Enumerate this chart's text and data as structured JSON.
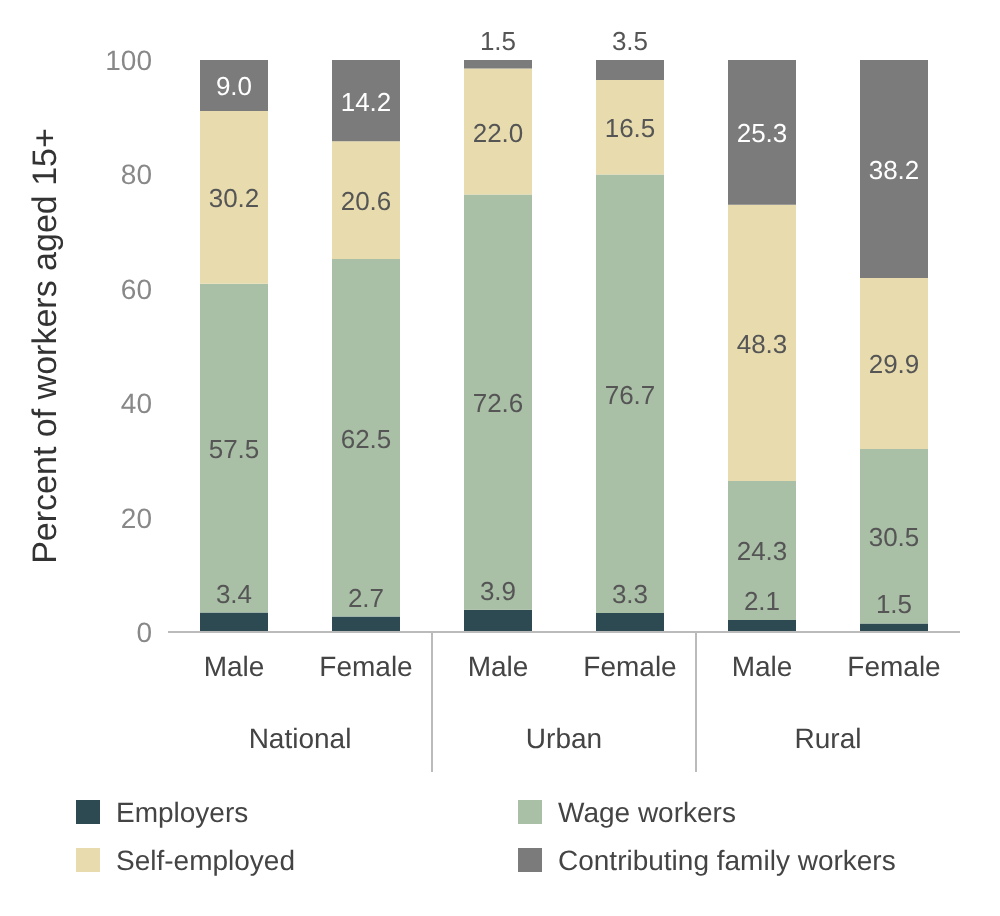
{
  "chart_data": {
    "type": "bar",
    "stacked": true,
    "ylabel": "Percent of workers aged 15+",
    "categories": [
      "Male",
      "Female",
      "Male",
      "Female",
      "Male",
      "Female"
    ],
    "annotations": [
      "National",
      "Urban",
      "Rural"
    ],
    "ylim": [
      0,
      100
    ],
    "yticks": [
      0,
      20,
      40,
      60,
      80,
      100
    ],
    "legend": "bottom",
    "series": [
      {
        "name": "Employers",
        "color": "#2d4a53",
        "values": [
          3.4,
          2.7,
          3.9,
          3.3,
          2.1,
          1.5
        ],
        "value_labels": [
          "3.4",
          "2.7",
          "3.9",
          "3.3",
          "2.1",
          "1.5"
        ]
      },
      {
        "name": "Wage workers",
        "color": "#a9bfa6",
        "values": [
          57.5,
          62.5,
          72.6,
          76.7,
          24.3,
          30.5
        ],
        "value_labels": [
          "57.5",
          "62.5",
          "72.6",
          "76.7",
          "24.3",
          "30.5"
        ]
      },
      {
        "name": "Self-employed",
        "color": "#e8dcae",
        "values": [
          30.2,
          20.6,
          22.0,
          16.5,
          48.3,
          29.9
        ],
        "value_labels": [
          "30.2",
          "20.6",
          "22.0",
          "16.5",
          "48.3",
          "29.9"
        ]
      },
      {
        "name": "Contributing family workers",
        "color": "#7b7b7b",
        "values": [
          9.0,
          14.2,
          1.5,
          3.5,
          25.3,
          38.2
        ],
        "value_labels": [
          "9.0",
          "14.2",
          "1.5",
          "3.5",
          "25.3",
          "38.2"
        ]
      }
    ]
  }
}
